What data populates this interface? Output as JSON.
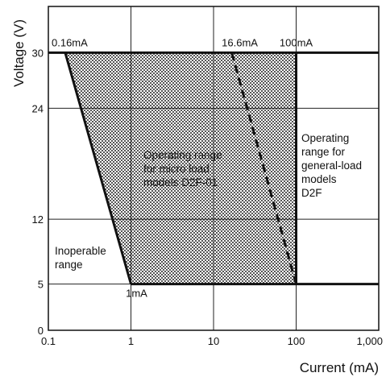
{
  "chart_data": {
    "type": "area",
    "xlabel": "Current (mA)",
    "ylabel": "Voltage (V)",
    "x_scale": "log",
    "xlim": [
      0.1,
      1000
    ],
    "ylim": [
      0,
      35
    ],
    "grid": true,
    "x_ticks": [
      "0.1",
      "1",
      "10",
      "100",
      "1,000"
    ],
    "y_ticks": [
      "0",
      "5",
      "12",
      "24",
      "30"
    ],
    "boundaries": {
      "max_voltage": 30,
      "min_voltage": 5,
      "micro_load_left": {
        "points": [
          [
            0.16,
            30
          ],
          [
            1,
            5
          ]
        ]
      },
      "micro_load_right": {
        "points": [
          [
            16.6,
            30
          ],
          [
            100,
            5
          ]
        ],
        "style": "dashed"
      },
      "general_load_right": {
        "points": [
          [
            100,
            30
          ],
          [
            100,
            5
          ]
        ]
      }
    },
    "shaded_region": [
      [
        0.16,
        30
      ],
      [
        100,
        30
      ],
      [
        100,
        5
      ],
      [
        1,
        5
      ]
    ],
    "annotations": {
      "pt_016": "0.16mA",
      "pt_166": "16.6mA",
      "pt_100": "100mA",
      "pt_1": "1mA"
    },
    "regions": {
      "inoperable": [
        "Inoperable",
        "range"
      ],
      "micro": [
        "Operating range",
        "for micro load",
        "models D2F-01"
      ],
      "general": [
        "Operating",
        "range for",
        "general-load",
        "models",
        "D2F"
      ]
    }
  }
}
